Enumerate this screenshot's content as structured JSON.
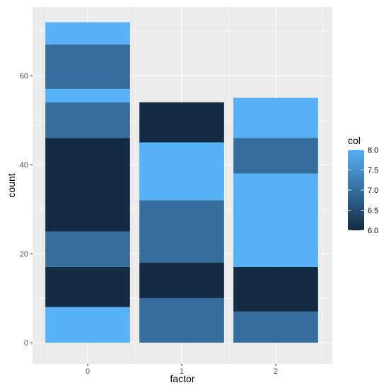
{
  "chart_data": {
    "type": "bar",
    "stacked": true,
    "xlabel": "factor",
    "ylabel": "count",
    "categories": [
      "0",
      "1",
      "2"
    ],
    "ylim": [
      0,
      75
    ],
    "y_ticks": [
      0,
      20,
      40,
      60
    ],
    "grid": true,
    "stacks": [
      {
        "category": "0",
        "segments": [
          {
            "from": 0,
            "to": 8,
            "col": 8
          },
          {
            "from": 8,
            "to": 17,
            "col": 6
          },
          {
            "from": 17,
            "to": 25,
            "col": 7
          },
          {
            "from": 25,
            "to": 46,
            "col": 6
          },
          {
            "from": 46,
            "to": 54,
            "col": 7
          },
          {
            "from": 54,
            "to": 57,
            "col": 8
          },
          {
            "from": 57,
            "to": 67,
            "col": 7
          },
          {
            "from": 67,
            "to": 72,
            "col": 8
          }
        ]
      },
      {
        "category": "1",
        "segments": [
          {
            "from": 0,
            "to": 10,
            "col": 7
          },
          {
            "from": 10,
            "to": 18,
            "col": 6
          },
          {
            "from": 18,
            "to": 32,
            "col": 7
          },
          {
            "from": 32,
            "to": 45,
            "col": 8
          },
          {
            "from": 45,
            "to": 54,
            "col": 6
          }
        ]
      },
      {
        "category": "2",
        "segments": [
          {
            "from": 0,
            "to": 7,
            "col": 7
          },
          {
            "from": 7,
            "to": 17,
            "col": 6
          },
          {
            "from": 17,
            "to": 38,
            "col": 8
          },
          {
            "from": 38,
            "to": 46,
            "col": 7
          },
          {
            "from": 46,
            "to": 55,
            "col": 8
          }
        ]
      }
    ],
    "legend": {
      "title": "col",
      "placement": "right",
      "range": [
        6.0,
        8.0
      ],
      "breaks": [
        6.0,
        6.5,
        7.0,
        7.5,
        8.0
      ],
      "break_labels": [
        "6.0",
        "6.5",
        "7.0",
        "7.5",
        "8.0"
      ],
      "color_low": "#132B43",
      "color_high": "#56B1F7"
    },
    "panel_background": "#EBEBEB",
    "gridline_color": "#FFFFFF"
  }
}
